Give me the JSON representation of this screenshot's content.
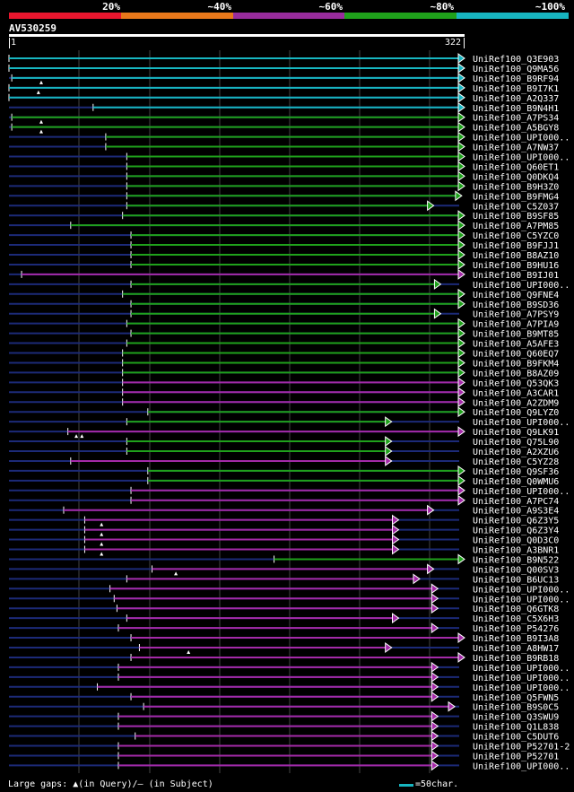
{
  "legend": [
    {
      "label": "20%",
      "color": "#e8162e"
    },
    {
      "label": "~40%",
      "color": "#e8781a"
    },
    {
      "label": "~60%",
      "color": "#982c9c"
    },
    {
      "label": "~80%",
      "color": "#1fa11b"
    },
    {
      "label": "~100%",
      "color": "#17b5c0"
    }
  ],
  "query": {
    "name": "AV530259",
    "start": "1",
    "end": "322",
    "length": 322
  },
  "colors": {
    "cyan": "#17b5c0",
    "green": "#1fa11b",
    "magenta": "#a42aa8",
    "blue": "#1c2a78",
    "grid": "#444444"
  },
  "hits": [
    {
      "name": "UniRef100_Q3E903",
      "class": "cyan",
      "start": 1,
      "end": 322,
      "tri": true
    },
    {
      "name": "UniRef100_Q9MA56",
      "class": "cyan",
      "start": 1,
      "end": 322,
      "tri": true
    },
    {
      "name": "UniRef100_B9RF94",
      "class": "cyan",
      "start": 3,
      "end": 322,
      "tri": true,
      "gaps": [
        24
      ]
    },
    {
      "name": "UniRef100_B9I7K1",
      "class": "cyan",
      "start": 1,
      "end": 322,
      "tri": true,
      "gaps": [
        22
      ]
    },
    {
      "name": "UniRef100_A2Q337",
      "class": "cyan",
      "start": 1,
      "end": 322,
      "tri": true
    },
    {
      "name": "UniRef100_B9N4H1",
      "class": "cyan",
      "start": 61,
      "end": 322,
      "tri": true
    },
    {
      "name": "UniRef100_A7PS34",
      "class": "green",
      "start": 3,
      "end": 322,
      "tri": true,
      "gaps": [
        24
      ]
    },
    {
      "name": "UniRef100_A5BGY8",
      "class": "green",
      "start": 3,
      "end": 322,
      "tri": true,
      "gaps": [
        24
      ]
    },
    {
      "name": "UniRef100_UPI000..",
      "class": "green",
      "start": 70,
      "end": 322,
      "tri": true
    },
    {
      "name": "UniRef100_A7NW37",
      "class": "green",
      "start": 70,
      "end": 322,
      "tri": true
    },
    {
      "name": "UniRef100_UPI000..",
      "class": "green",
      "start": 85,
      "end": 322,
      "tri": true
    },
    {
      "name": "UniRef100_Q60ET1",
      "class": "green",
      "start": 85,
      "end": 322,
      "tri": true
    },
    {
      "name": "UniRef100_Q0DKQ4",
      "class": "green",
      "start": 85,
      "end": 322,
      "tri": true
    },
    {
      "name": "UniRef100_B9H3Z0",
      "class": "green",
      "start": 85,
      "end": 322,
      "tri": true
    },
    {
      "name": "UniRef100_B9FMG4",
      "class": "green",
      "start": 85,
      "end": 320,
      "tri": true
    },
    {
      "name": "UniRef100_C5Z037",
      "class": "green",
      "start": 85,
      "end": 300,
      "tri": true
    },
    {
      "name": "UniRef100_B9SF85",
      "class": "green",
      "start": 82,
      "end": 322,
      "tri": true
    },
    {
      "name": "UniRef100_A7PM85",
      "class": "green",
      "start": 45,
      "end": 322,
      "tri": true
    },
    {
      "name": "UniRef100_C5YZC0",
      "class": "green",
      "start": 88,
      "end": 322,
      "tri": true
    },
    {
      "name": "UniRef100_B9FJJ1",
      "class": "green",
      "start": 88,
      "end": 322,
      "tri": true
    },
    {
      "name": "UniRef100_B8AZ10",
      "class": "green",
      "start": 88,
      "end": 322,
      "tri": true
    },
    {
      "name": "UniRef100_B9HU16",
      "class": "green",
      "start": 88,
      "end": 322,
      "tri": true
    },
    {
      "name": "UniRef100_B9IJ01",
      "class": "magenta",
      "start": 10,
      "end": 322,
      "tri": true
    },
    {
      "name": "UniRef100_UPI000..",
      "class": "green",
      "start": 88,
      "end": 305,
      "tri": true
    },
    {
      "name": "UniRef100_Q9FNE4",
      "class": "green",
      "start": 82,
      "end": 322,
      "tri": true
    },
    {
      "name": "UniRef100_B9SD36",
      "class": "green",
      "start": 88,
      "end": 322,
      "tri": true
    },
    {
      "name": "UniRef100_A7PSY9",
      "class": "green",
      "start": 88,
      "end": 305,
      "tri": true
    },
    {
      "name": "UniRef100_A7PIA9",
      "class": "green",
      "start": 85,
      "end": 322,
      "tri": true
    },
    {
      "name": "UniRef100_B9MT85",
      "class": "green",
      "start": 88,
      "end": 322,
      "tri": true
    },
    {
      "name": "UniRef100_A5AFE3",
      "class": "green",
      "start": 85,
      "end": 322,
      "tri": true
    },
    {
      "name": "UniRef100_Q60EQ7",
      "class": "green",
      "start": 82,
      "end": 322,
      "tri": true
    },
    {
      "name": "UniRef100_B9FKM4",
      "class": "green",
      "start": 82,
      "end": 322,
      "tri": true
    },
    {
      "name": "UniRef100_B8AZ09",
      "class": "green",
      "start": 82,
      "end": 322,
      "tri": true
    },
    {
      "name": "UniRef100_Q53QK3",
      "class": "magenta",
      "start": 82,
      "end": 322,
      "tri": true
    },
    {
      "name": "UniRef100_A3CAR1",
      "class": "magenta",
      "start": 82,
      "end": 322,
      "tri": true
    },
    {
      "name": "UniRef100_A2ZDM9",
      "class": "magenta",
      "start": 82,
      "end": 322,
      "tri": true
    },
    {
      "name": "UniRef100_Q9LYZ0",
      "class": "green",
      "start": 100,
      "end": 322,
      "tri": true
    },
    {
      "name": "UniRef100_UPI000..",
      "class": "green",
      "start": 85,
      "end": 270,
      "tri": true
    },
    {
      "name": "UniRef100_Q9LK91",
      "class": "magenta",
      "start": 43,
      "end": 322,
      "tri": true,
      "gaps": [
        49,
        53
      ]
    },
    {
      "name": "UniRef100_Q75L90",
      "class": "green",
      "start": 85,
      "end": 270,
      "tri": true
    },
    {
      "name": "UniRef100_A2XZU6",
      "class": "green",
      "start": 85,
      "end": 270,
      "tri": true
    },
    {
      "name": "UniRef100_C5YZ28",
      "class": "magenta",
      "start": 45,
      "end": 270,
      "tri": true
    },
    {
      "name": "UniRef100_Q9SF36",
      "class": "green",
      "start": 100,
      "end": 322,
      "tri": true
    },
    {
      "name": "UniRef100_Q0WMU6",
      "class": "green",
      "start": 100,
      "end": 322,
      "tri": true
    },
    {
      "name": "UniRef100_UPI000..",
      "class": "magenta",
      "start": 88,
      "end": 322,
      "tri": true
    },
    {
      "name": "UniRef100_A7PC74",
      "class": "magenta",
      "start": 88,
      "end": 322,
      "tri": true
    },
    {
      "name": "UniRef100_A9S3E4",
      "class": "magenta",
      "start": 40,
      "end": 300,
      "tri": true
    },
    {
      "name": "UniRef100_Q6Z3Y5",
      "class": "magenta",
      "start": 55,
      "end": 275,
      "tri": true,
      "gaps": [
        67
      ]
    },
    {
      "name": "UniRef100_Q6Z3Y4",
      "class": "magenta",
      "start": 55,
      "end": 275,
      "tri": true,
      "gaps": [
        67
      ]
    },
    {
      "name": "UniRef100_Q0D3C0",
      "class": "magenta",
      "start": 55,
      "end": 275,
      "tri": true,
      "gaps": [
        67
      ]
    },
    {
      "name": "UniRef100_A3BNR1",
      "class": "magenta",
      "start": 55,
      "end": 275,
      "tri": true,
      "gaps": [
        67
      ]
    },
    {
      "name": "UniRef100_B9N522",
      "class": "green",
      "start": 190,
      "end": 322,
      "tri": true
    },
    {
      "name": "UniRef100_Q00SV3",
      "class": "magenta",
      "start": 103,
      "end": 300,
      "tri": true,
      "gaps": [
        120
      ]
    },
    {
      "name": "UniRef100_B6UC13",
      "class": "magenta",
      "start": 85,
      "end": 290,
      "tri": true
    },
    {
      "name": "UniRef100_UPI000..",
      "class": "magenta",
      "start": 73,
      "end": 303,
      "tri": true
    },
    {
      "name": "UniRef100_UPI000..",
      "class": "magenta",
      "start": 76,
      "end": 303,
      "tri": true
    },
    {
      "name": "UniRef100_Q6GTK8",
      "class": "magenta",
      "start": 78,
      "end": 303,
      "tri": true
    },
    {
      "name": "UniRef100_C5X6H3",
      "class": "magenta",
      "start": 85,
      "end": 275,
      "tri": true
    },
    {
      "name": "UniRef100_P54276",
      "class": "magenta",
      "start": 79,
      "end": 303,
      "tri": true
    },
    {
      "name": "UniRef100_B9I3A8",
      "class": "magenta",
      "start": 88,
      "end": 322,
      "tri": true
    },
    {
      "name": "UniRef100_A8HW17",
      "class": "magenta",
      "start": 94,
      "end": 270,
      "tri": true,
      "gaps": [
        129
      ]
    },
    {
      "name": "UniRef100_B9RB18",
      "class": "magenta",
      "start": 88,
      "end": 322,
      "tri": true
    },
    {
      "name": "UniRef100_UPI000..",
      "class": "magenta",
      "start": 79,
      "end": 303,
      "tri": true
    },
    {
      "name": "UniRef100_UPI000..",
      "class": "magenta",
      "start": 79,
      "end": 303,
      "tri": true
    },
    {
      "name": "UniRef100_UPI000..",
      "class": "magenta",
      "start": 64,
      "end": 303,
      "tri": true
    },
    {
      "name": "UniRef100_Q5FWN5",
      "class": "magenta",
      "start": 88,
      "end": 303,
      "tri": true
    },
    {
      "name": "UniRef100_B9S0C5",
      "class": "magenta",
      "start": 97,
      "end": 315,
      "tri": true
    },
    {
      "name": "UniRef100_Q3SWU9",
      "class": "magenta",
      "start": 79,
      "end": 303,
      "tri": true
    },
    {
      "name": "UniRef100_Q1L838",
      "class": "magenta",
      "start": 79,
      "end": 303,
      "tri": true
    },
    {
      "name": "UniRef100_C5DUT6",
      "class": "magenta",
      "start": 91,
      "end": 303,
      "tri": true
    },
    {
      "name": "UniRef100_P52701-2",
      "class": "magenta",
      "start": 79,
      "end": 303,
      "tri": true
    },
    {
      "name": "UniRef100_P52701",
      "class": "magenta",
      "start": 79,
      "end": 303,
      "tri": true
    },
    {
      "name": "UniRef100_UPI000..",
      "class": "magenta",
      "start": 79,
      "end": 303,
      "tri": true
    }
  ],
  "footer": {
    "gaps_label": "Large gaps:",
    "query_gap_text": "(in Query)/– (in Subject)",
    "scale_text": "=50char."
  }
}
